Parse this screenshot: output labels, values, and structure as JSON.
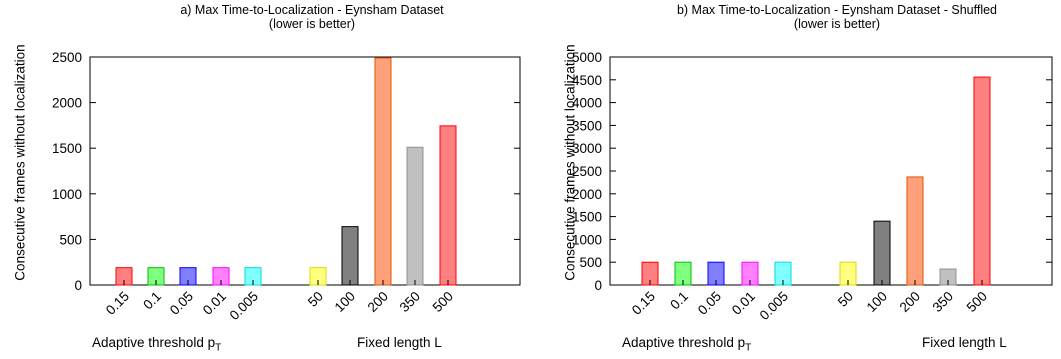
{
  "figure": {
    "panels": [
      {
        "title_line1": "a) Max Time-to-Localization - Eynsham Dataset",
        "title_line2": "(lower is better)",
        "ylabel": "Consecutive frames without localization",
        "group_labels": [
          {
            "base": "Adaptive threshold p",
            "sub": "T"
          },
          {
            "base": "Fixed length L",
            "sub": ""
          }
        ]
      },
      {
        "title_line1": "b) Max Time-to-Localization - Eynsham Dataset - Shuffled",
        "title_line2": "(lower is better)",
        "ylabel": "Consecutive frames without localization",
        "group_labels": [
          {
            "base": "Adaptive threshold p",
            "sub": "T"
          },
          {
            "base": "Fixed length L",
            "sub": ""
          }
        ]
      }
    ]
  },
  "chart_data": [
    {
      "type": "bar",
      "title": "a) Max Time-to-Localization - Eynsham Dataset (lower is better)",
      "ylabel": "Consecutive frames without localization",
      "ylim": [
        0,
        2500
      ],
      "yticks": [
        0,
        500,
        1000,
        1500,
        2000,
        2500
      ],
      "groups": [
        "Adaptive threshold pT",
        "Fixed length L"
      ],
      "categories": [
        "0.15",
        "0.1",
        "0.05",
        "0.01",
        "0.005",
        "50",
        "100",
        "200",
        "350",
        "500"
      ],
      "values": [
        190,
        190,
        190,
        190,
        190,
        190,
        640,
        2490,
        1510,
        1745
      ],
      "fill_colors": [
        "#ff8080",
        "#80ff80",
        "#8080ff",
        "#ff80ff",
        "#80ffff",
        "#ffff80",
        "#808080",
        "#ffa07a",
        "#c0c0c0",
        "#ff8080"
      ],
      "edge_colors": [
        "#ff0000",
        "#00c000",
        "#0000ff",
        "#ff00ff",
        "#00dddd",
        "#dddd00",
        "#000000",
        "#dd5500",
        "#909090",
        "#ff0000"
      ],
      "grid": false,
      "legend": "none"
    },
    {
      "type": "bar",
      "title": "b) Max Time-to-Localization - Eynsham Dataset - Shuffled (lower is better)",
      "ylabel": "Consecutive frames without localization",
      "ylim": [
        0,
        5000
      ],
      "yticks": [
        0,
        500,
        1000,
        1500,
        2000,
        2500,
        3000,
        3500,
        4000,
        4500,
        5000
      ],
      "groups": [
        "Adaptive threshold pT",
        "Fixed length L"
      ],
      "categories": [
        "0.15",
        "0.1",
        "0.05",
        "0.01",
        "0.005",
        "50",
        "100",
        "200",
        "350",
        "500"
      ],
      "values": [
        500,
        500,
        500,
        500,
        500,
        500,
        1400,
        2370,
        350,
        4560
      ],
      "fill_colors": [
        "#ff8080",
        "#80ff80",
        "#8080ff",
        "#ff80ff",
        "#80ffff",
        "#ffff80",
        "#808080",
        "#ffa07a",
        "#c0c0c0",
        "#ff8080"
      ],
      "edge_colors": [
        "#ff0000",
        "#00c000",
        "#0000ff",
        "#ff00ff",
        "#00dddd",
        "#dddd00",
        "#000000",
        "#dd5500",
        "#909090",
        "#ff0000"
      ],
      "grid": false,
      "legend": "none"
    }
  ]
}
